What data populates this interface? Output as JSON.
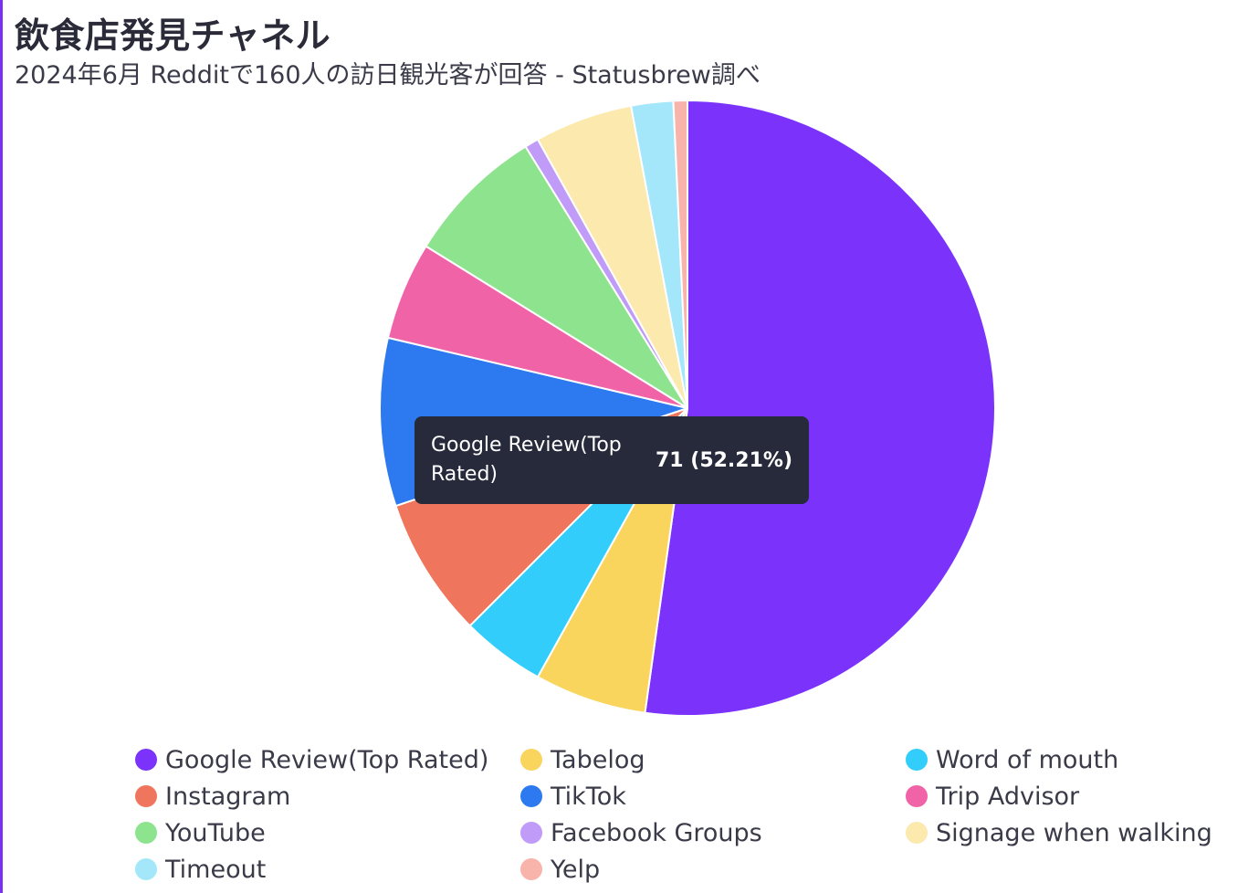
{
  "title": "飲食店発見チャネル",
  "subtitle": "2024年6月 Redditで160人の訪日観光客が回答 - Statusbrew調べ",
  "tooltip": {
    "label": "Google Review(Top Rated)",
    "value": "71 (52.21%)"
  },
  "chart_data": {
    "type": "pie",
    "categories": [
      "Google Review(Top Rated)",
      "Tabelog",
      "Word of mouth",
      "Instagram",
      "TikTok",
      "Trip Advisor",
      "YouTube",
      "Facebook Groups",
      "Signage when walking",
      "Timeout",
      "Yelp"
    ],
    "values": [
      71,
      8,
      6,
      10,
      12,
      7,
      10,
      1,
      7,
      3,
      1
    ],
    "colors": [
      "#7b33fb",
      "#f9d55e",
      "#33cdfb",
      "#ef755d",
      "#2d79f0",
      "#f163a7",
      "#8ee48e",
      "#c09bf8",
      "#fce9ae",
      "#a4e7fb",
      "#f8b4ab"
    ],
    "legend_position": "bottom",
    "highlighted": "Google Review(Top Rated)"
  }
}
